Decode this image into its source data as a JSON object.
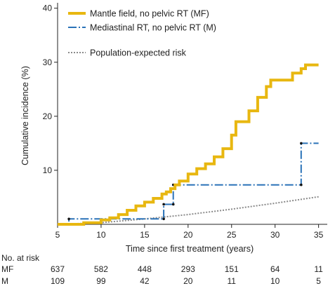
{
  "chart_data": {
    "type": "line",
    "subtype": "cumulative-incidence step curves",
    "xlabel": "Time since first treatment (years)",
    "ylabel": "Cumulative incidence (%)",
    "xlim": [
      5,
      36
    ],
    "ylim": [
      0,
      41
    ],
    "x_ticks": [
      5,
      10,
      15,
      20,
      25,
      30,
      35
    ],
    "y_ticks": [
      10,
      20,
      30,
      40
    ],
    "grid": false,
    "legend_position": "top-left",
    "series": [
      {
        "name": "Mantle field, no pelvic RT (MF)",
        "color": "#e8b710",
        "style": "solid-thick",
        "x": [
          5,
          8,
          10,
          11,
          12,
          13,
          14,
          15,
          16,
          17,
          17.5,
          18,
          18.5,
          19,
          20,
          21,
          22,
          23,
          24,
          25,
          25.5,
          26,
          27,
          28,
          29,
          29.5,
          30,
          31,
          32,
          33,
          33.5,
          34,
          35
        ],
        "y": [
          0,
          0.3,
          0.8,
          1.2,
          1.8,
          2.6,
          3.4,
          4.1,
          4.8,
          5.6,
          6.0,
          6.6,
          7.3,
          8.0,
          9.3,
          10.3,
          11.2,
          12.5,
          14.0,
          16.5,
          19.0,
          19.0,
          21.0,
          23.5,
          25.5,
          26.7,
          26.7,
          26.7,
          28.0,
          28.8,
          29.5,
          29.5,
          29.5
        ]
      },
      {
        "name": "Mediastinal RT, no pelvic RT (M)",
        "color": "#2a72b8",
        "style": "dash-dot",
        "x": [
          5,
          6.3,
          6.3,
          17.2,
          17.2,
          18.3,
          18.3,
          33,
          33,
          35
        ],
        "y": [
          0,
          0,
          1.0,
          1.0,
          3.7,
          3.7,
          7.3,
          7.3,
          15,
          15
        ],
        "event_markers": [
          [
            6.3,
            1.0
          ],
          [
            17.2,
            1.0
          ],
          [
            17.2,
            3.7
          ],
          [
            18.3,
            3.7
          ],
          [
            18.3,
            7.3
          ],
          [
            33,
            7.3
          ],
          [
            33,
            15
          ]
        ]
      },
      {
        "name": "Population-expected risk",
        "color": "#8a8a8a",
        "style": "dotted",
        "x": [
          5,
          10,
          15,
          20,
          25,
          30,
          35
        ],
        "y": [
          0,
          0.3,
          1.0,
          1.8,
          2.8,
          3.9,
          5.1
        ]
      }
    ],
    "risk_table": {
      "title": "No. at risk",
      "times": [
        5,
        10,
        15,
        20,
        25,
        30,
        35
      ],
      "rows": [
        {
          "label": "MF",
          "values": [
            "637",
            "582",
            "448",
            "293",
            "151",
            "64",
            "11"
          ]
        },
        {
          "label": "M",
          "values": [
            "109",
            "99",
            "42",
            "20",
            "11",
            "10",
            "5"
          ]
        }
      ]
    }
  }
}
